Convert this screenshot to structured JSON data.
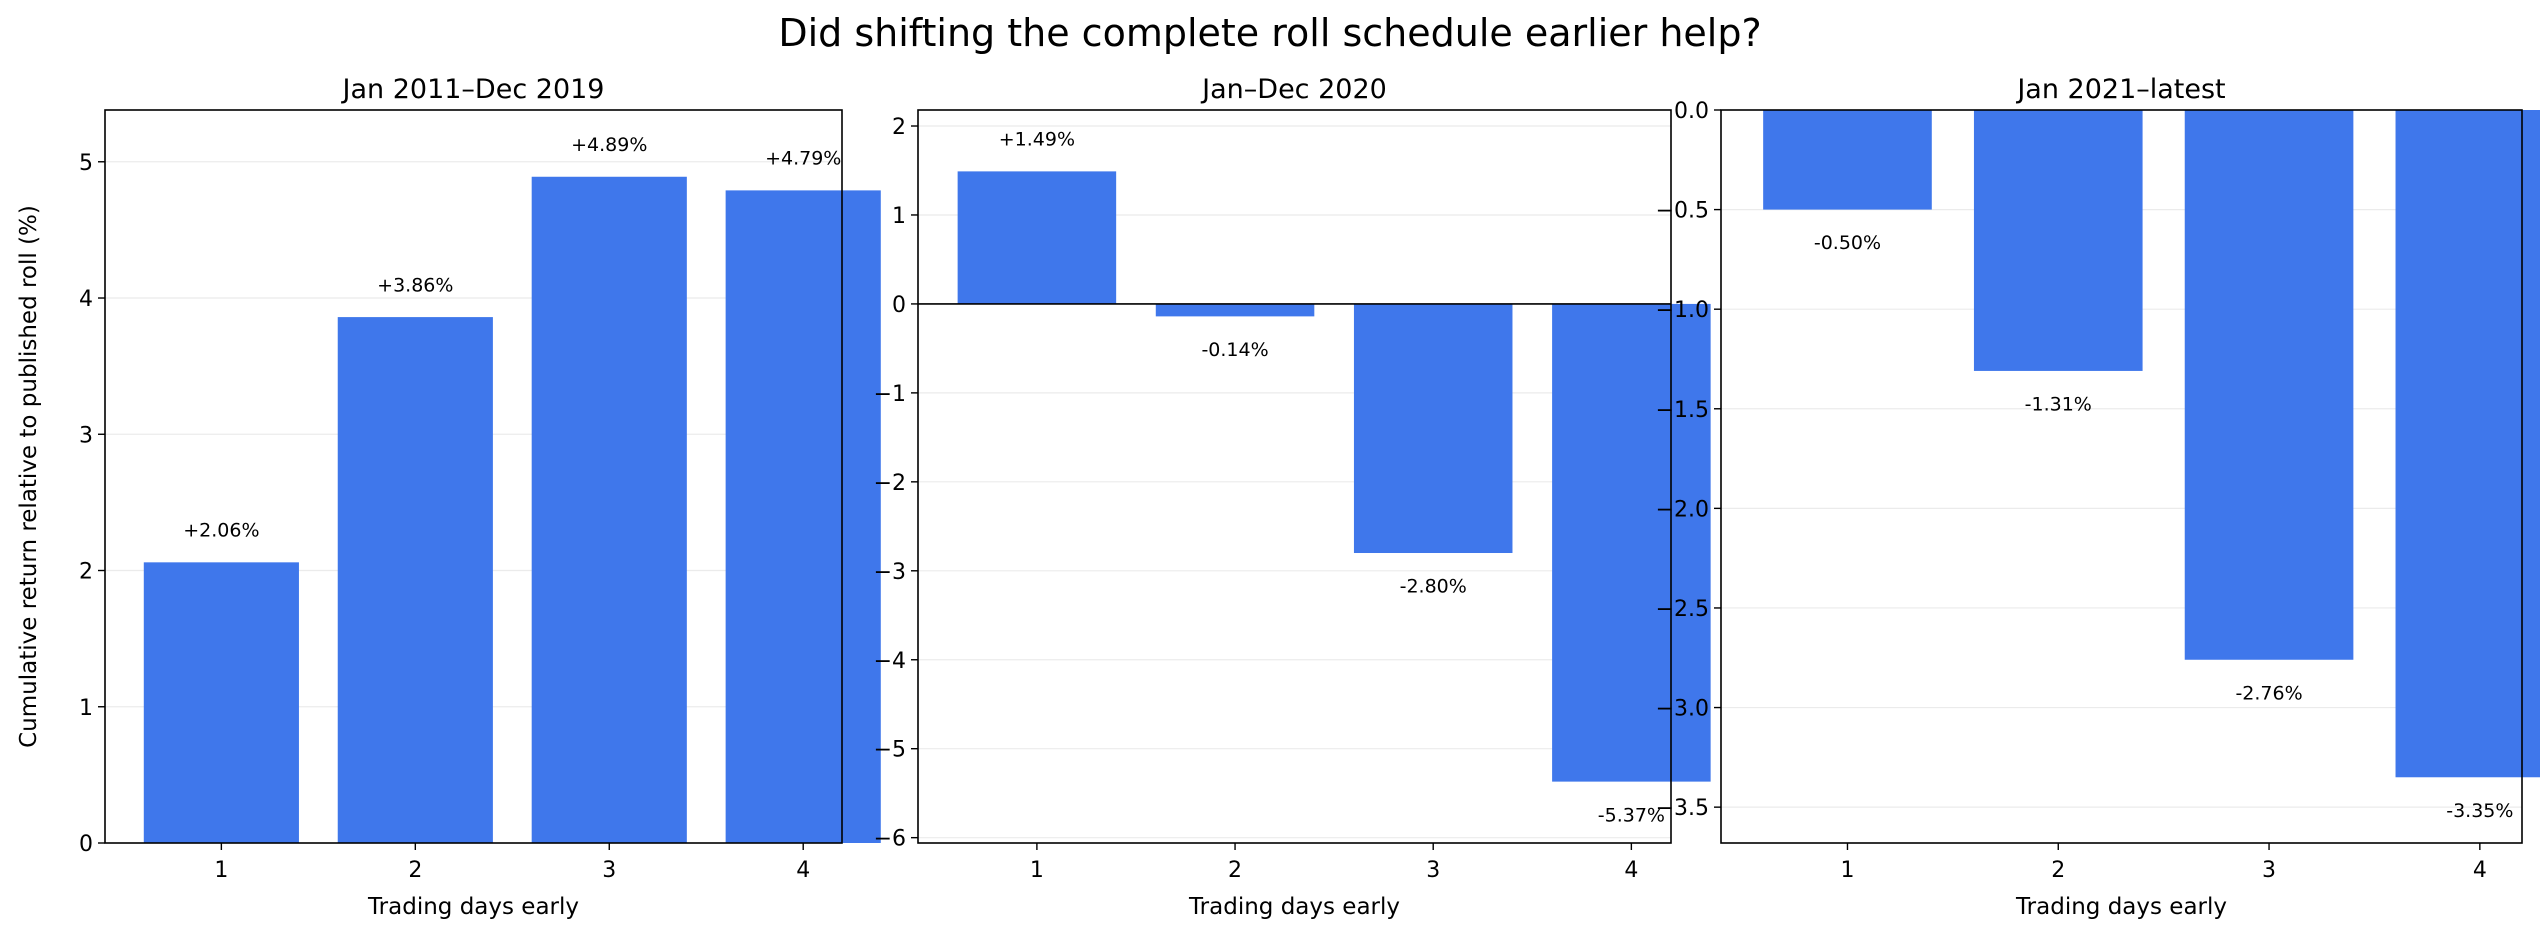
{
  "figure": {
    "title": "Did shifting the complete roll schedule earlier help?",
    "bar_color": "#3f77eb"
  },
  "chart_data": [
    {
      "type": "bar",
      "title": "Jan 2011–Dec 2019",
      "xlabel": "Trading days early",
      "ylabel": "Cumulative return relative to published roll (%)",
      "categories": [
        "1",
        "2",
        "3",
        "4"
      ],
      "values": [
        2.06,
        3.86,
        4.89,
        4.79
      ],
      "data_labels": [
        "+2.06%",
        "+3.86%",
        "+4.89%",
        "+4.79%"
      ],
      "ylim": [
        0,
        5.38
      ],
      "yticks": [
        0,
        1,
        2,
        3,
        4,
        5
      ],
      "ytick_labels": [
        "0",
        "1",
        "2",
        "3",
        "4",
        "5"
      ],
      "grid": true
    },
    {
      "type": "bar",
      "title": "Jan–Dec 2020",
      "xlabel": "Trading days early",
      "ylabel": "",
      "categories": [
        "1",
        "2",
        "3",
        "4"
      ],
      "values": [
        1.49,
        -0.14,
        -2.8,
        -5.37
      ],
      "data_labels": [
        "+1.49%",
        "-0.14%",
        "-2.80%",
        "-5.37%"
      ],
      "ylim": [
        -6.06,
        2.18
      ],
      "yticks": [
        -6,
        -5,
        -4,
        -3,
        -2,
        -1,
        0,
        1,
        2
      ],
      "ytick_labels": [
        "−6",
        "−5",
        "−4",
        "−3",
        "−2",
        "−1",
        "0",
        "1",
        "2"
      ],
      "grid": true
    },
    {
      "type": "bar",
      "title": "Jan 2021–latest",
      "xlabel": "Trading days early",
      "ylabel": "",
      "categories": [
        "1",
        "2",
        "3",
        "4"
      ],
      "values": [
        -0.5,
        -1.31,
        -2.76,
        -3.35
      ],
      "data_labels": [
        "-0.50%",
        "-1.31%",
        "-2.76%",
        "-3.35%"
      ],
      "ylim": [
        -3.68,
        0.0
      ],
      "yticks": [
        -3.5,
        -3.0,
        -2.5,
        -2.0,
        -1.5,
        -1.0,
        -0.5,
        0.0
      ],
      "ytick_labels": [
        "−3.5",
        "−3.0",
        "−2.5",
        "−2.0",
        "−1.5",
        "−1.0",
        "−0.5",
        "0.0"
      ],
      "grid": true
    }
  ]
}
